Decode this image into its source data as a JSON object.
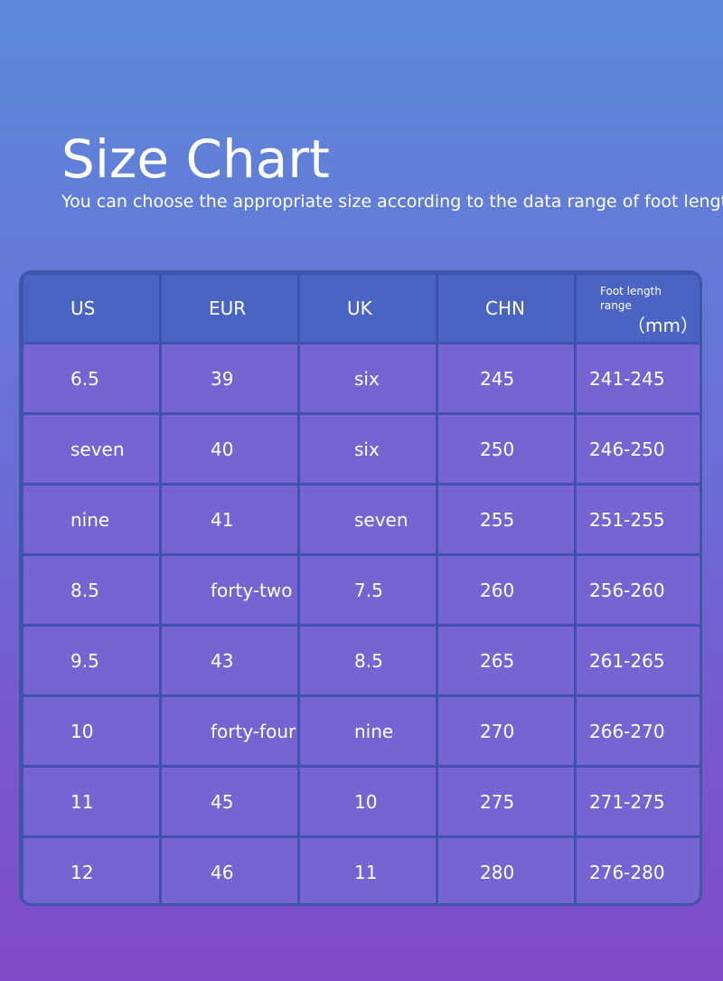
{
  "header": {
    "title": "Size Chart",
    "subtitle": "You can choose the appropriate size according to the data range of foot length."
  },
  "table": {
    "columns": [
      "US",
      "EUR",
      "UK",
      "CHN"
    ],
    "foot_length_label": "Foot length range",
    "foot_length_unit": "（mm）",
    "rows": [
      [
        "6.5",
        "39",
        "six",
        "245",
        "241-245"
      ],
      [
        "seven",
        "40",
        "six",
        "250",
        "246-250"
      ],
      [
        "nine",
        "41",
        "seven",
        "255",
        "251-255"
      ],
      [
        "8.5",
        "forty-two",
        "7.5",
        "260",
        "256-260"
      ],
      [
        "9.5",
        "43",
        "8.5",
        "265",
        "261-265"
      ],
      [
        "10",
        "forty-four",
        "nine",
        "270",
        "266-270"
      ],
      [
        "11",
        "45",
        "10",
        "275",
        "271-275"
      ],
      [
        "12",
        "46",
        "11",
        "280",
        "276-280"
      ]
    ]
  },
  "colors": {
    "background_top": "#5b8ad8",
    "background_bottom": "#7f4bc6",
    "header_cell": "#4a64c3",
    "body_cell": "#7664d3",
    "grid_line": "#3f52ad"
  }
}
